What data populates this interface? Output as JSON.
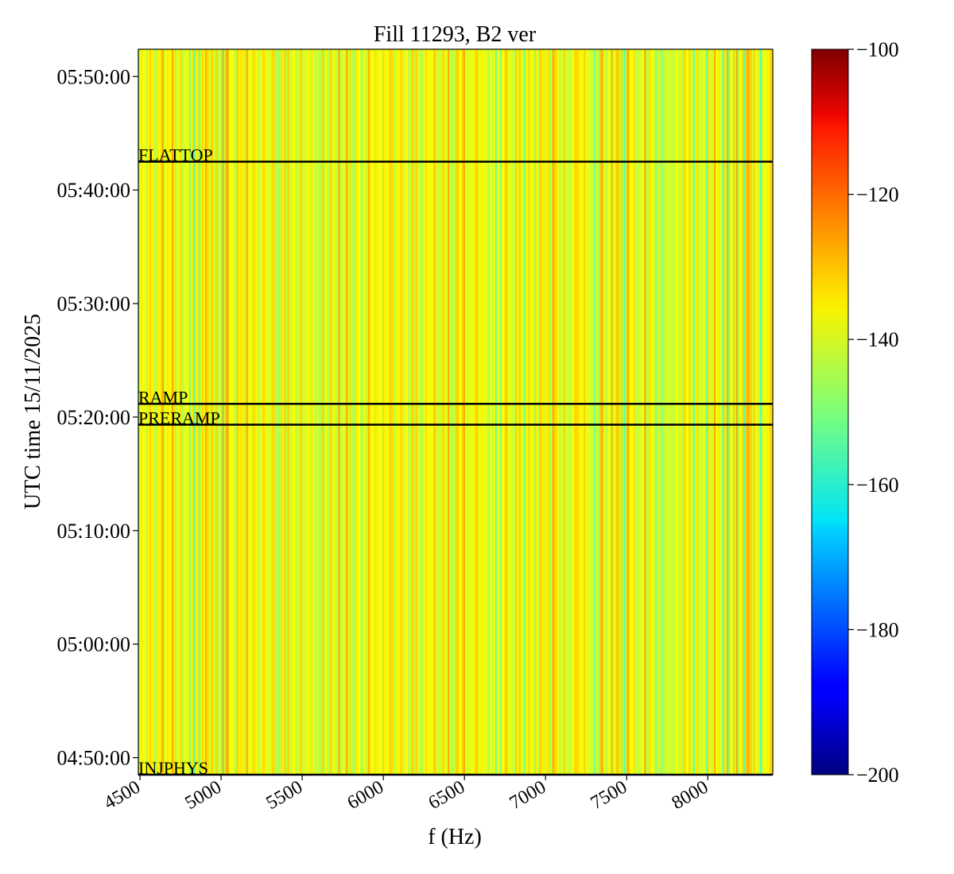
{
  "chart_data": {
    "type": "heatmap",
    "title": "Fill 11293, B2 ver",
    "xlabel": "f (Hz)",
    "ylabel": "UTC time 15/11/2025",
    "xlim": [
      4490,
      8400
    ],
    "ylim_minutes_after_0450": [
      -1.5,
      62.4
    ],
    "x_ticks": [
      "4500",
      "5000",
      "5500",
      "6000",
      "6500",
      "7000",
      "7500",
      "8000"
    ],
    "y_ticks": [
      {
        "label": "04:50:00",
        "minutes": 0
      },
      {
        "label": "05:00:00",
        "minutes": 10
      },
      {
        "label": "05:10:00",
        "minutes": 20
      },
      {
        "label": "05:20:00",
        "minutes": 30
      },
      {
        "label": "05:30:00",
        "minutes": 40
      },
      {
        "label": "05:40:00",
        "minutes": 50
      },
      {
        "label": "05:50:00",
        "minutes": 60
      }
    ],
    "colorbar": {
      "colormap": "jet",
      "min": -200,
      "max": -100,
      "ticks": [
        "−100",
        "−120",
        "−140",
        "−160",
        "−180",
        "−200"
      ]
    },
    "typical_value_range": [
      -150,
      -130
    ],
    "annotations": [
      {
        "text": "FLATTOP",
        "time": "05:42:30"
      },
      {
        "text": "RAMP",
        "time": "05:21:10"
      },
      {
        "text": "PRERAMP",
        "time": "05:19:20"
      },
      {
        "text": "INJPHYS",
        "time": "04:48:30"
      }
    ]
  }
}
